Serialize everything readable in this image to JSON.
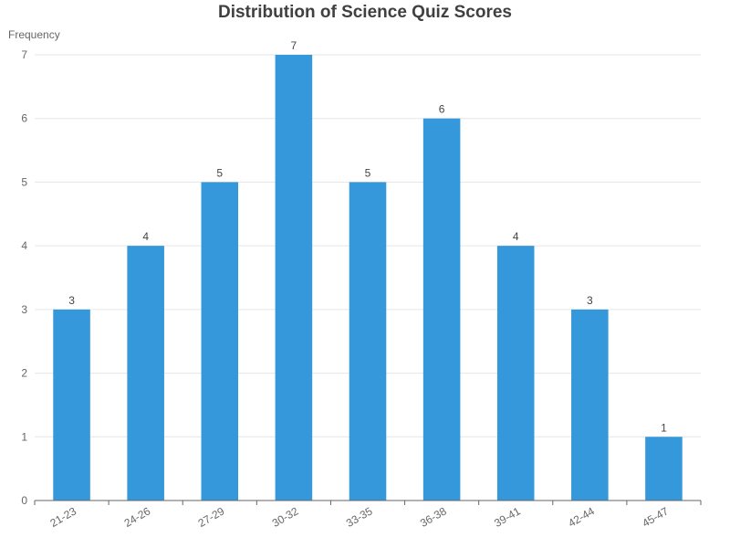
{
  "chart_data": {
    "type": "bar",
    "title": "Distribution of Science Quiz Scores",
    "xlabel": "",
    "ylabel": "Frequency",
    "categories": [
      "21-23",
      "24-26",
      "27-29",
      "30-32",
      "33-35",
      "36-38",
      "39-41",
      "42-44",
      "45-47"
    ],
    "values": [
      3,
      4,
      5,
      7,
      5,
      6,
      4,
      3,
      1
    ],
    "ylim": [
      0,
      7
    ],
    "yticks": [
      0,
      1,
      2,
      3,
      4,
      5,
      6,
      7
    ],
    "grid": true,
    "bar_color": "#3498db",
    "data_labels": true
  }
}
